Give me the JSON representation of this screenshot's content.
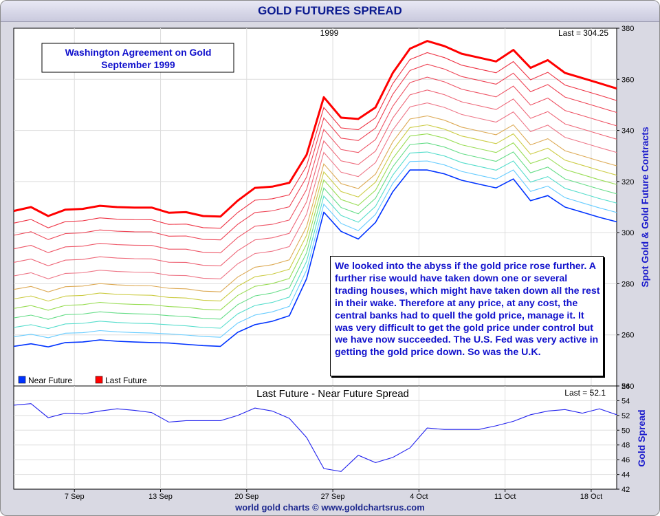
{
  "title": "GOLD FUTURES SPREAD",
  "footer": "world gold charts © www.goldchartsrus.com",
  "colors": {
    "near": "#0033ff",
    "last": "#ff0000",
    "spread_line": "#2222ee",
    "annotation_text": "#1010cc",
    "axis_title": "#1a1acc"
  },
  "top_panel": {
    "year_label": "1999",
    "last_label": "Last = 304.25",
    "annotation_box": "Washington Agreement on Gold\nSeptember 1999",
    "quote_box": "We looked into the abyss if the gold price rose further. A further rise would have taken down one or several trading houses, which might have taken down all the rest in their wake. Therefore at any price, at any cost, the central banks had to quell the gold price, manage it. It was very difficult to get the gold price under control but we have now succeeded. The U.S. Fed was very active in getting the gold price down. So was the U.K.",
    "legend": [
      {
        "label": "Near Future",
        "color": "#0033ff"
      },
      {
        "label": "Last Future",
        "color": "#ff0000"
      }
    ]
  },
  "bottom_panel": {
    "title": "Last Future - Near Future Spread",
    "last_label": "Last = 52.1"
  },
  "chart_data": [
    {
      "type": "line",
      "ylabel": "Spot Gold & Gold Future Contracts",
      "ylim": [
        240,
        380
      ],
      "yticks": [
        240,
        260,
        280,
        300,
        320,
        340,
        360,
        380
      ],
      "grid": true,
      "x_tick_labels": [
        "7 Sep",
        "13 Sep",
        "20 Sep",
        "27 Sep",
        "4 Oct",
        "11 Oct",
        "18 Oct"
      ],
      "series": [
        {
          "name": "Near Future",
          "color": "#0033ff",
          "values": [
            255.5,
            256.5,
            255.3,
            257.0,
            257.2,
            258.0,
            257.5,
            257.2,
            257.0,
            256.8,
            256.3,
            255.8,
            255.5,
            261.0,
            264.0,
            265.3,
            267.5,
            282.0,
            308.0,
            300.5,
            297.5,
            304.0,
            316.0,
            324.5,
            324.5,
            323.0,
            320.5,
            319.0,
            317.5,
            321.0,
            312.5,
            314.5,
            310.0,
            308.0,
            306.0,
            304.25
          ]
        },
        {
          "name": "Last Future",
          "color": "#ff0000",
          "values": [
            308.5,
            310.0,
            306.5,
            309.0,
            309.3,
            310.5,
            310.0,
            309.8,
            309.8,
            307.8,
            308.0,
            306.5,
            306.3,
            312.5,
            317.5,
            318.0,
            319.5,
            330.5,
            353.0,
            345.0,
            344.5,
            349.0,
            362.5,
            372.0,
            375.0,
            373.0,
            370.0,
            368.5,
            367.0,
            371.5,
            364.5,
            367.5,
            362.5,
            360.5,
            358.5,
            356.4
          ]
        }
      ]
    },
    {
      "type": "line",
      "title": "Last Future - Near Future Spread",
      "ylabel": "Gold Spread",
      "ylim": [
        42,
        56
      ],
      "yticks": [
        42,
        44,
        46,
        48,
        50,
        52,
        54,
        56
      ],
      "x_tick_labels": [
        "7 Sep",
        "13 Sep",
        "20 Sep",
        "27 Sep",
        "4 Oct",
        "11 Oct",
        "18 Oct"
      ],
      "series": [
        {
          "values": [
            53.4,
            53.6,
            51.7,
            52.3,
            52.2,
            52.6,
            52.9,
            52.7,
            52.4,
            51.1,
            51.3,
            51.3,
            51.3,
            52.0,
            53.0,
            52.6,
            51.6,
            49.0,
            44.8,
            44.4,
            46.6,
            45.6,
            46.3,
            47.6,
            50.3,
            50.1,
            50.1,
            50.1,
            50.6,
            51.2,
            52.1,
            52.6,
            52.8,
            52.3,
            52.9,
            52.1
          ]
        }
      ]
    }
  ]
}
